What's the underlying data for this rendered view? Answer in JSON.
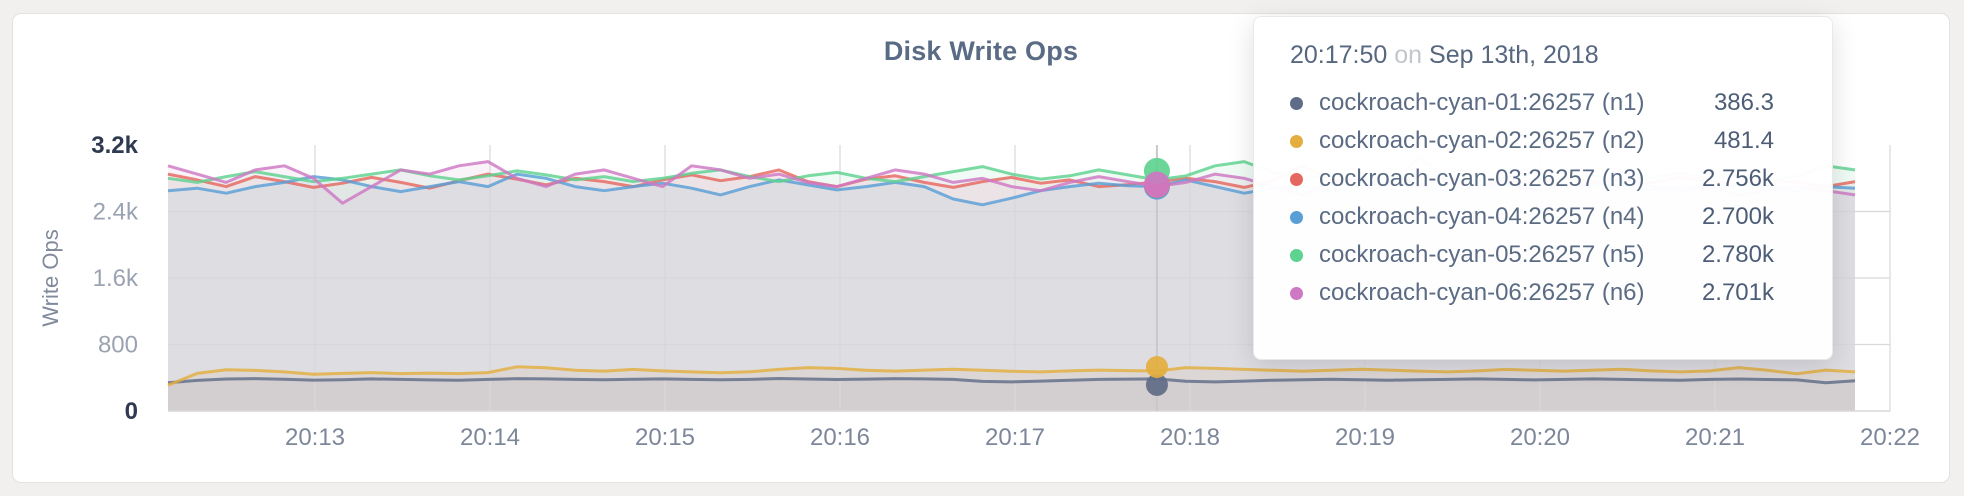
{
  "title": "Disk Write Ops",
  "colors": {
    "n1": "#5f6c87",
    "n2": "#e3ae3d",
    "n3": "#e5685f",
    "n4": "#599fd6",
    "n5": "#5ed28f",
    "n6": "#ce77c3",
    "grid": "#d8d8d8",
    "hover_line": "#c9c9c9",
    "tick_dark": "#2f3a50",
    "tick_light": "#9ba3b2",
    "axis_title": "#808a9b",
    "x_tick": "#7d8799"
  },
  "y_axis": {
    "label": "Write Ops",
    "ticks": [
      {
        "label": "3.2k",
        "value": 3200,
        "emphasis": true,
        "gridline": false
      },
      {
        "label": "2.4k",
        "value": 2400,
        "emphasis": false,
        "gridline": true
      },
      {
        "label": "1.6k",
        "value": 1600,
        "emphasis": false,
        "gridline": true
      },
      {
        "label": "800",
        "value": 800,
        "emphasis": false,
        "gridline": true
      },
      {
        "label": "0",
        "value": 0,
        "emphasis": true,
        "gridline": false
      }
    ]
  },
  "x_axis": {
    "ticks": [
      "20:13",
      "20:14",
      "20:15",
      "20:16",
      "20:17",
      "20:18",
      "20:19",
      "20:20",
      "20:21",
      "20:22"
    ]
  },
  "tooltip": {
    "time": "20:17:50",
    "conjunction": "on",
    "date": "Sep 13th, 2018",
    "rows": [
      {
        "series": "n1",
        "label": "cockroach-cyan-01:26257 (n1)",
        "value": "386.3"
      },
      {
        "series": "n2",
        "label": "cockroach-cyan-02:26257 (n2)",
        "value": "481.4"
      },
      {
        "series": "n3",
        "label": "cockroach-cyan-03:26257 (n3)",
        "value": "2.756k"
      },
      {
        "series": "n4",
        "label": "cockroach-cyan-04:26257 (n4)",
        "value": "2.700k"
      },
      {
        "series": "n5",
        "label": "cockroach-cyan-05:26257 (n5)",
        "value": "2.780k"
      },
      {
        "series": "n6",
        "label": "cockroach-cyan-06:26257 (n6)",
        "value": "2.701k"
      }
    ]
  },
  "chart_data": {
    "type": "line",
    "title": "Disk Write Ops",
    "ylabel": "Write Ops",
    "xlabel": "",
    "ylim": [
      0,
      3200
    ],
    "x_start": "20:12:10",
    "x_end": "20:21:50",
    "x_step_seconds": 10,
    "grid": true,
    "hover": {
      "time": "20:17:50",
      "date": "Sep 13th, 2018",
      "index": 34,
      "values": {
        "n1": 386.3,
        "n2": 481.4,
        "n3": 2756,
        "n4": 2700,
        "n5": 2780,
        "n6": 2701
      }
    },
    "series": [
      {
        "id": "n1",
        "name": "cockroach-cyan-01:26257 (n1)",
        "values": [
          340,
          368,
          385,
          390,
          382,
          372,
          376,
          386,
          380,
          374,
          370,
          380,
          390,
          386,
          380,
          376,
          381,
          386,
          380,
          375,
          380,
          391,
          385,
          379,
          384,
          390,
          386,
          380,
          356,
          350,
          360,
          371,
          380,
          384,
          386.3,
          358,
          350,
          360,
          370,
          376,
          381,
          375,
          370,
          376,
          380,
          386,
          380,
          374,
          380,
          386,
          380,
          374,
          370,
          380,
          385,
          379,
          374,
          340,
          364
        ]
      },
      {
        "id": "n2",
        "name": "cockroach-cyan-02:26257 (n2)",
        "values": [
          310,
          452,
          496,
          488,
          470,
          442,
          452,
          462,
          450,
          456,
          450,
          462,
          532,
          520,
          490,
          480,
          500,
          482,
          470,
          460,
          472,
          500,
          522,
          512,
          490,
          480,
          492,
          502,
          490,
          478,
          470,
          482,
          492,
          486,
          481.4,
          522,
          512,
          500,
          490,
          480,
          490,
          502,
          492,
          480,
          470,
          482,
          500,
          490,
          480,
          492,
          502,
          482,
          470,
          482,
          522,
          490,
          448,
          492,
          470
        ]
      },
      {
        "id": "n3",
        "name": "cockroach-cyan-03:26257 (n3)",
        "values": [
          2850,
          2780,
          2700,
          2820,
          2760,
          2690,
          2740,
          2810,
          2750,
          2680,
          2770,
          2850,
          2790,
          2720,
          2800,
          2760,
          2700,
          2780,
          2840,
          2770,
          2820,
          2900,
          2760,
          2700,
          2790,
          2830,
          2750,
          2690,
          2760,
          2810,
          2740,
          2780,
          2700,
          2724,
          2756,
          2800,
          2760,
          2690,
          2770,
          2950,
          2780,
          2700,
          2760,
          2820,
          2750,
          2700,
          2780,
          2740,
          2800,
          2760,
          2700,
          2750,
          2810,
          2770,
          2720,
          2780,
          2750,
          2700,
          2760
        ]
      },
      {
        "id": "n4",
        "name": "cockroach-cyan-04:26257 (n4)",
        "values": [
          2650,
          2680,
          2620,
          2700,
          2750,
          2820,
          2780,
          2700,
          2640,
          2700,
          2760,
          2700,
          2850,
          2800,
          2700,
          2650,
          2700,
          2740,
          2680,
          2600,
          2700,
          2780,
          2720,
          2660,
          2700,
          2750,
          2700,
          2550,
          2480,
          2560,
          2650,
          2700,
          2740,
          2710,
          2700,
          2780,
          2700,
          2620,
          2680,
          2700,
          2640,
          2700,
          2750,
          2700,
          2650,
          2700,
          2720,
          2680,
          2700,
          2740,
          2700,
          2660,
          2700,
          2680,
          2720,
          2700,
          2650,
          2700,
          2680
        ]
      },
      {
        "id": "n5",
        "name": "cockroach-cyan-05:26257 (n5)",
        "values": [
          2800,
          2750,
          2820,
          2880,
          2820,
          2760,
          2800,
          2850,
          2900,
          2830,
          2780,
          2830,
          2890,
          2840,
          2780,
          2820,
          2760,
          2800,
          2860,
          2900,
          2820,
          2760,
          2830,
          2870,
          2800,
          2760,
          2820,
          2880,
          2940,
          2850,
          2790,
          2830,
          2900,
          2840,
          2780,
          2830,
          2950,
          3000,
          2870,
          2800,
          2840,
          2780,
          2820,
          2860,
          2800,
          2760,
          2810,
          2850,
          2790,
          2830,
          2770,
          2810,
          2860,
          2800,
          2840,
          2780,
          2820,
          2950,
          2900
        ]
      },
      {
        "id": "n6",
        "name": "cockroach-cyan-06:26257 (n6)",
        "values": [
          2950,
          2850,
          2750,
          2900,
          2950,
          2800,
          2500,
          2700,
          2900,
          2850,
          2950,
          3000,
          2800,
          2700,
          2850,
          2900,
          2800,
          2700,
          2950,
          2900,
          2800,
          2850,
          2750,
          2700,
          2800,
          2900,
          2850,
          2750,
          2800,
          2700,
          2650,
          2750,
          2820,
          2760,
          2701,
          2750,
          2850,
          2800,
          2700,
          2600,
          2750,
          2800,
          2700,
          3050,
          2800,
          2700,
          2750,
          2650,
          2700,
          2750,
          2800,
          2700,
          2650,
          2700,
          2600,
          2650,
          2700,
          2650,
          2600
        ]
      }
    ]
  }
}
